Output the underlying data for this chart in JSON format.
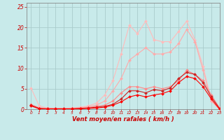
{
  "title": "",
  "xlabel": "Vent moyen/en rafales ( km/h )",
  "ylabel": "",
  "xlim": [
    -0.5,
    23
  ],
  "ylim": [
    0,
    26
  ],
  "yticks": [
    0,
    5,
    10,
    15,
    20,
    25
  ],
  "xticks": [
    0,
    1,
    2,
    3,
    4,
    5,
    6,
    7,
    8,
    9,
    10,
    11,
    12,
    13,
    14,
    15,
    16,
    17,
    18,
    19,
    20,
    21,
    22,
    23
  ],
  "bg_color": "#c8eaea",
  "grid_color": "#aacccc",
  "lines": [
    {
      "color": "#ffbbbb",
      "linewidth": 0.8,
      "marker": "D",
      "markersize": 2.0,
      "x": [
        0,
        1,
        2,
        3,
        4,
        5,
        6,
        7,
        8,
        9,
        10,
        11,
        12,
        13,
        14,
        15,
        16,
        17,
        18,
        19,
        20,
        21,
        22,
        23
      ],
      "y": [
        5.2,
        0.8,
        0.3,
        0.2,
        0.2,
        0.3,
        0.5,
        0.8,
        1.5,
        3.5,
        7.0,
        13.5,
        20.5,
        18.5,
        21.5,
        17.0,
        16.5,
        16.5,
        19.0,
        21.5,
        17.0,
        10.5,
        2.0,
        0.0
      ]
    },
    {
      "color": "#ffaaaa",
      "linewidth": 0.8,
      "marker": "D",
      "markersize": 2.0,
      "x": [
        0,
        1,
        2,
        3,
        4,
        5,
        6,
        7,
        8,
        9,
        10,
        11,
        12,
        13,
        14,
        15,
        16,
        17,
        18,
        19,
        20,
        21,
        22,
        23
      ],
      "y": [
        1.2,
        0.4,
        0.2,
        0.2,
        0.2,
        0.2,
        0.4,
        0.6,
        1.0,
        2.0,
        4.5,
        7.5,
        12.0,
        13.5,
        15.0,
        13.5,
        13.5,
        14.0,
        16.0,
        19.5,
        16.5,
        9.5,
        2.0,
        0.0
      ]
    },
    {
      "color": "#ff8888",
      "linewidth": 0.8,
      "marker": "D",
      "markersize": 2.0,
      "x": [
        0,
        1,
        2,
        3,
        4,
        5,
        6,
        7,
        8,
        9,
        10,
        11,
        12,
        13,
        14,
        15,
        16,
        17,
        18,
        19,
        20,
        21,
        22,
        23
      ],
      "y": [
        1.0,
        0.2,
        0.1,
        0.1,
        0.1,
        0.1,
        0.2,
        0.4,
        0.7,
        1.0,
        2.0,
        4.0,
        5.5,
        5.5,
        5.0,
        5.5,
        5.0,
        5.5,
        7.0,
        9.5,
        8.5,
        7.0,
        3.5,
        0.3
      ]
    },
    {
      "color": "#cc2222",
      "linewidth": 0.8,
      "marker": "D",
      "markersize": 2.0,
      "x": [
        0,
        1,
        2,
        3,
        4,
        5,
        6,
        7,
        8,
        9,
        10,
        11,
        12,
        13,
        14,
        15,
        16,
        17,
        18,
        19,
        20,
        21,
        22,
        23
      ],
      "y": [
        1.0,
        0.2,
        0.1,
        0.1,
        0.1,
        0.1,
        0.2,
        0.3,
        0.5,
        0.7,
        1.2,
        2.5,
        4.5,
        4.5,
        4.0,
        4.8,
        4.5,
        5.2,
        7.5,
        9.0,
        8.5,
        6.5,
        3.0,
        0.2
      ]
    },
    {
      "color": "#ff0000",
      "linewidth": 0.8,
      "marker": "D",
      "markersize": 2.0,
      "x": [
        0,
        1,
        2,
        3,
        4,
        5,
        6,
        7,
        8,
        9,
        10,
        11,
        12,
        13,
        14,
        15,
        16,
        17,
        18,
        19,
        20,
        21,
        22,
        23
      ],
      "y": [
        0.8,
        0.1,
        0.05,
        0.05,
        0.05,
        0.05,
        0.1,
        0.2,
        0.3,
        0.5,
        1.0,
        1.8,
        3.0,
        3.5,
        3.0,
        3.5,
        3.8,
        4.5,
        6.5,
        8.0,
        7.5,
        5.5,
        2.5,
        0.0
      ]
    }
  ]
}
